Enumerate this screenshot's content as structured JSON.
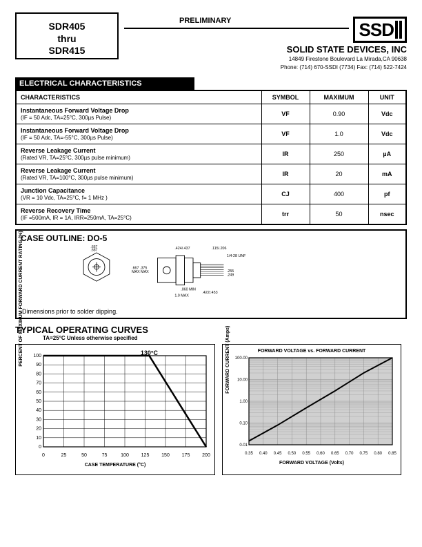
{
  "header": {
    "title_line1": "SDR405",
    "title_line2": "thru",
    "title_line3": "SDR415",
    "preliminary": "PRELIMINARY",
    "logo_text": "SSD",
    "company": "SOLID STATE DEVICES, INC",
    "addr1": "14849 Firestone Boulevard      La Mirada,CA 90638",
    "addr2": "Phone: (714) 670-SSDI (7734)      Fax: (714) 522-7424"
  },
  "section_bar": "ELECTRICAL CHARACTERISTICS",
  "table": {
    "headers": [
      "CHARACTERISTICS",
      "SYMBOL",
      "MAXIMUM",
      "UNIT"
    ],
    "rows": [
      {
        "name": "Instantaneous Forward Voltage Drop",
        "cond": "(IF =  50  Adc, TA=25°C, 300µs Pulse)",
        "symbol": "VF",
        "max": "0.90",
        "unit": "Vdc"
      },
      {
        "name": "Instantaneous Forward Voltage Drop",
        "cond": "(IF =  50  Adc, TA=-55°C, 300µs Pulse)",
        "symbol": "VF",
        "max": "1.0",
        "unit": "Vdc"
      },
      {
        "name": "Reverse Leakage Current",
        "cond": "(Rated VR, TA=25°C, 300µs pulse minimum)",
        "symbol": "IR",
        "max": "250",
        "unit": "µA"
      },
      {
        "name": "Reverse Leakage Current",
        "cond": "(Rated VR, TA=100°C, 300µs pulse minimum)",
        "symbol": "IR",
        "max": "20",
        "unit": "mA"
      },
      {
        "name": "Junction Capacitance",
        "cond": "(VR =  10 Vdc, TA=25°C, f= 1 MHz )",
        "symbol": "CJ",
        "max": "400",
        "unit": "pf"
      },
      {
        "name": "Reverse Recovery Time",
        "cond": "(IF =500mA, IR = 1A, IRR=250mA, TA=25°C)",
        "symbol": "trr",
        "max": "50",
        "unit": "nsec"
      }
    ]
  },
  "case": {
    "title": "CASE OUTLINE: DO-5",
    "note": "Dimensions prior to solder dipping.",
    "dims": {
      "d1": ".667\n.687",
      "d2": ".140\n.175",
      "d3": ".667 .375\nMAX  MAX",
      "d4": ".424\n.437",
      "d5": ".115\n.206",
      "d6": "1/4-28 UNF",
      "d7": ".255\n.249",
      "d8": ".060 MIN",
      "d9": "1.0 MAX",
      "d10": ".422\n.453"
    }
  },
  "curves": {
    "title": "TYPICAL OPERATING CURVES",
    "subtitle": "TA=25°C Unless otherwise specified"
  },
  "chart1": {
    "type": "line",
    "title_inside": "130°C",
    "y_label": "PERCENT OF MAXIMUM FORWARD\nCURRENT RATING (%)",
    "x_label": "CASE TEMPERATURE (°C)",
    "xlim": [
      0,
      200
    ],
    "xtick_step": 25,
    "ylim": [
      0,
      100
    ],
    "ytick_step": 10,
    "grid_color": "#000000",
    "line_color": "#000000",
    "background_color": "#ffffff",
    "points": [
      [
        0,
        100
      ],
      [
        130,
        100
      ],
      [
        200,
        0
      ]
    ]
  },
  "chart2": {
    "type": "line",
    "title": "FORWARD VOLTAGE vs. FORWARD CURRENT",
    "y_label": "FORWARD CURRENT (Amps)",
    "x_label": "FORWARD VOLTAGE (Volts)",
    "x_ticks": [
      0.35,
      0.4,
      0.45,
      0.5,
      0.55,
      0.6,
      0.65,
      0.7,
      0.75,
      0.8,
      0.85
    ],
    "y_ticks_log": [
      0.01,
      0.1,
      1.0,
      10.0,
      100.0
    ],
    "grid_color": "#909090",
    "line_color": "#000000",
    "background_color": "#d0d0d0",
    "points": [
      [
        0.35,
        0.015
      ],
      [
        0.45,
        0.08
      ],
      [
        0.55,
        0.5
      ],
      [
        0.65,
        3
      ],
      [
        0.75,
        20
      ],
      [
        0.85,
        100
      ]
    ]
  }
}
